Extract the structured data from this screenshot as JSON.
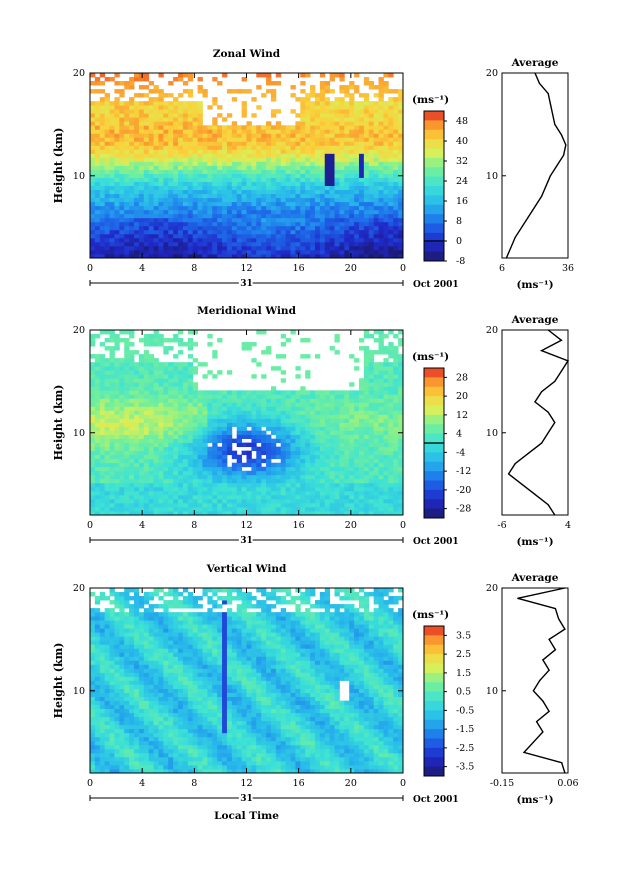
{
  "chart_data": [
    {
      "type": "heatmap",
      "title": "Zonal Wind",
      "ylabel": "Height (km)",
      "yticks": [
        "20",
        "10"
      ],
      "ylim": [
        2,
        20
      ],
      "xticks": [
        "0",
        "4",
        "8",
        "12",
        "16",
        "20",
        "0"
      ],
      "xlim": [
        0,
        24
      ],
      "date_label": "31",
      "date_suffix": "Oct 2001",
      "colorbar_unit": "(ms⁻¹)",
      "colorbar_ticks": [
        "48",
        "40",
        "32",
        "24",
        "16",
        "8",
        "0",
        "-8"
      ],
      "colorbar_range": [
        -8,
        52
      ],
      "colorbar_zero_line": 0,
      "profile": {
        "title": "Average",
        "xticks": [
          "6",
          "36"
        ],
        "xlim": [
          6,
          36
        ],
        "xunit": "(ms⁻¹)",
        "yticks": [
          "20",
          "10"
        ],
        "heights": [
          2,
          4,
          6,
          8,
          10,
          11,
          12,
          13,
          14,
          15,
          16,
          17,
          18,
          19,
          20
        ],
        "values": [
          8,
          12,
          18,
          24,
          28,
          31,
          34,
          35,
          33,
          30,
          29,
          28,
          27,
          23,
          21
        ]
      }
    },
    {
      "type": "heatmap",
      "title": "Meridional Wind",
      "ylabel": "Height (km)",
      "yticks": [
        "20",
        "10"
      ],
      "ylim": [
        2,
        20
      ],
      "xticks": [
        "0",
        "4",
        "8",
        "12",
        "16",
        "20",
        "0"
      ],
      "xlim": [
        0,
        24
      ],
      "date_label": "31",
      "date_suffix": "Oct 2001",
      "colorbar_unit": "(ms⁻¹)",
      "colorbar_ticks": [
        "28",
        "20",
        "12",
        "4",
        "-4",
        "-12",
        "-20",
        "-28"
      ],
      "colorbar_range": [
        -32,
        32
      ],
      "colorbar_zero_line": 0,
      "profile": {
        "title": "Average",
        "xticks": [
          "-6",
          "4"
        ],
        "xlim": [
          -6,
          4
        ],
        "xunit": "(ms⁻¹)",
        "yticks": [
          "20",
          "10"
        ],
        "heights": [
          2,
          3,
          4,
          5,
          6,
          7,
          8,
          9,
          10,
          11,
          12,
          13,
          14,
          15,
          16,
          17,
          18,
          19,
          20
        ],
        "values": [
          2,
          1,
          -1,
          -3,
          -5,
          -4,
          -2,
          0,
          1,
          2,
          1,
          -1,
          0,
          2,
          3,
          4,
          0,
          3,
          1
        ]
      }
    },
    {
      "type": "heatmap",
      "title": "Vertical Wind",
      "ylabel": "Height (km)",
      "yticks": [
        "20",
        "10"
      ],
      "ylim": [
        2,
        20
      ],
      "xticks": [
        "0",
        "4",
        "8",
        "12",
        "16",
        "20",
        "0"
      ],
      "xlim": [
        0,
        24
      ],
      "date_label": "31",
      "date_suffix": "Oct 2001",
      "xlabel": "Local Time",
      "colorbar_unit": "(ms⁻¹)",
      "colorbar_ticks": [
        "3.5",
        "2.5",
        "1.5",
        "0.5",
        "-0.5",
        "-1.5",
        "-2.5",
        "-3.5"
      ],
      "colorbar_range": [
        -4,
        4
      ],
      "colorbar_zero_line": null,
      "profile": {
        "title": "Average",
        "xticks": [
          "-0.15",
          "0.06"
        ],
        "xlim": [
          -0.15,
          0.06
        ],
        "xunit": "(ms⁻¹)",
        "yticks": [
          "20",
          "10"
        ],
        "heights": [
          2,
          3,
          4,
          5,
          6,
          7,
          8,
          9,
          10,
          11,
          12,
          13,
          14,
          15,
          16,
          17,
          18,
          19,
          20
        ],
        "values": [
          0.05,
          0.04,
          -0.08,
          -0.05,
          -0.02,
          -0.04,
          0.0,
          -0.02,
          -0.05,
          -0.03,
          0.0,
          -0.02,
          0.02,
          0.0,
          0.05,
          0.03,
          0.02,
          -0.1,
          0.05
        ]
      }
    }
  ]
}
